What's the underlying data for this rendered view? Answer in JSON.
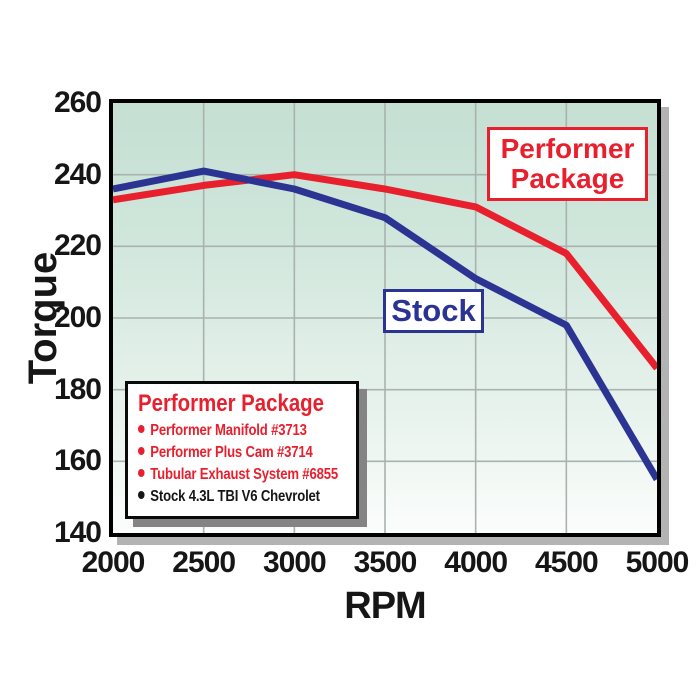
{
  "chart_data": {
    "type": "line",
    "title": "",
    "xlabel": "RPM",
    "ylabel": "Torque",
    "x": [
      2000,
      2500,
      3000,
      3500,
      4000,
      4500,
      5000
    ],
    "xticks": [
      2000,
      2500,
      3000,
      3500,
      4000,
      4500,
      5000
    ],
    "yticks": [
      260,
      240,
      220,
      200,
      180,
      160,
      140
    ],
    "xlim": [
      2000,
      5000
    ],
    "ylim": [
      140,
      260
    ],
    "grid": true,
    "legend_position": "inside-bottom-left",
    "series": [
      {
        "name": "Performer Package",
        "color": "#e8202e",
        "values": [
          233,
          237,
          240,
          236,
          231,
          218,
          186
        ]
      },
      {
        "name": "Stock",
        "color": "#2b3393",
        "values": [
          236,
          241,
          236,
          228,
          211,
          198,
          155
        ]
      }
    ]
  },
  "annotations": {
    "performer": {
      "label": "Performer Package",
      "color": "#e8202e"
    },
    "stock": {
      "label": "Stock",
      "color": "#2b3393"
    }
  },
  "legend": {
    "title": "Performer Package",
    "title_color": "#e8202e",
    "items": [
      {
        "label": "Performer Manifold #3713",
        "color": "#e8202e"
      },
      {
        "label": "Performer Plus Cam #3714",
        "color": "#e8202e"
      },
      {
        "label": "Tubular Exhaust System #6855",
        "color": "#e8202e"
      },
      {
        "label": "Stock 4.3L TBI V6 Chevrolet",
        "color": "#161616"
      }
    ]
  },
  "colors": {
    "grid": "#a9b2af",
    "plot_border": "#000000",
    "plot_shadow": "#b3b3b3",
    "background_top": "#c5dfd3",
    "background_bottom": "#fbfdfc",
    "text": "#161616"
  }
}
